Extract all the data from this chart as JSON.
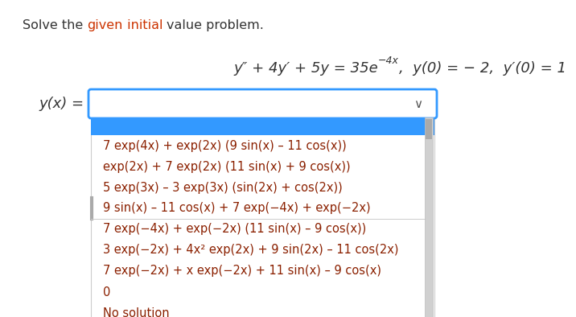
{
  "bg_color": "#ffffff",
  "outer_bg": "#e8e8e8",
  "title_normal_color": "#333333",
  "title_red_color": "#cc3300",
  "eq_color": "#333333",
  "dropdown_text_color": "#8b2000",
  "highlight_color": "#3399ff",
  "dropdown_bg": "#ffffff",
  "box_border_color": "#3399ff",
  "dropdown_border_color": "#cccccc",
  "scrollbar_bg": "#d0d0d0",
  "scrollbar_thumb": "#aaaaaa",
  "title_fontsize": 11.5,
  "eq_fontsize": 13,
  "option_fontsize": 10.5,
  "label_fontsize": 13,
  "dropdown_options": [
    "7 exp(4x) + exp(2x) (9 sin(x) – 11 cos(x))",
    "exp(2x) + 7 exp(2x) (11 sin(x) + 9 cos(x))",
    "5 exp(3x) – 3 exp(3x) (sin(2x) + cos(2x))",
    "9 sin(x) – 11 cos(x) + 7 exp(−4x) + exp(−2x)",
    "7 exp(−4x) + exp(−2x) (11 sin(x) – 9 cos(x))",
    "3 exp(−2x) + 4x² exp(2x) + 9 sin(2x) – 11 cos(2x)",
    "7 exp(−2x) + x exp(−2x) + 11 sin(x) – 9 cos(x)",
    "0",
    "No solution"
  ]
}
